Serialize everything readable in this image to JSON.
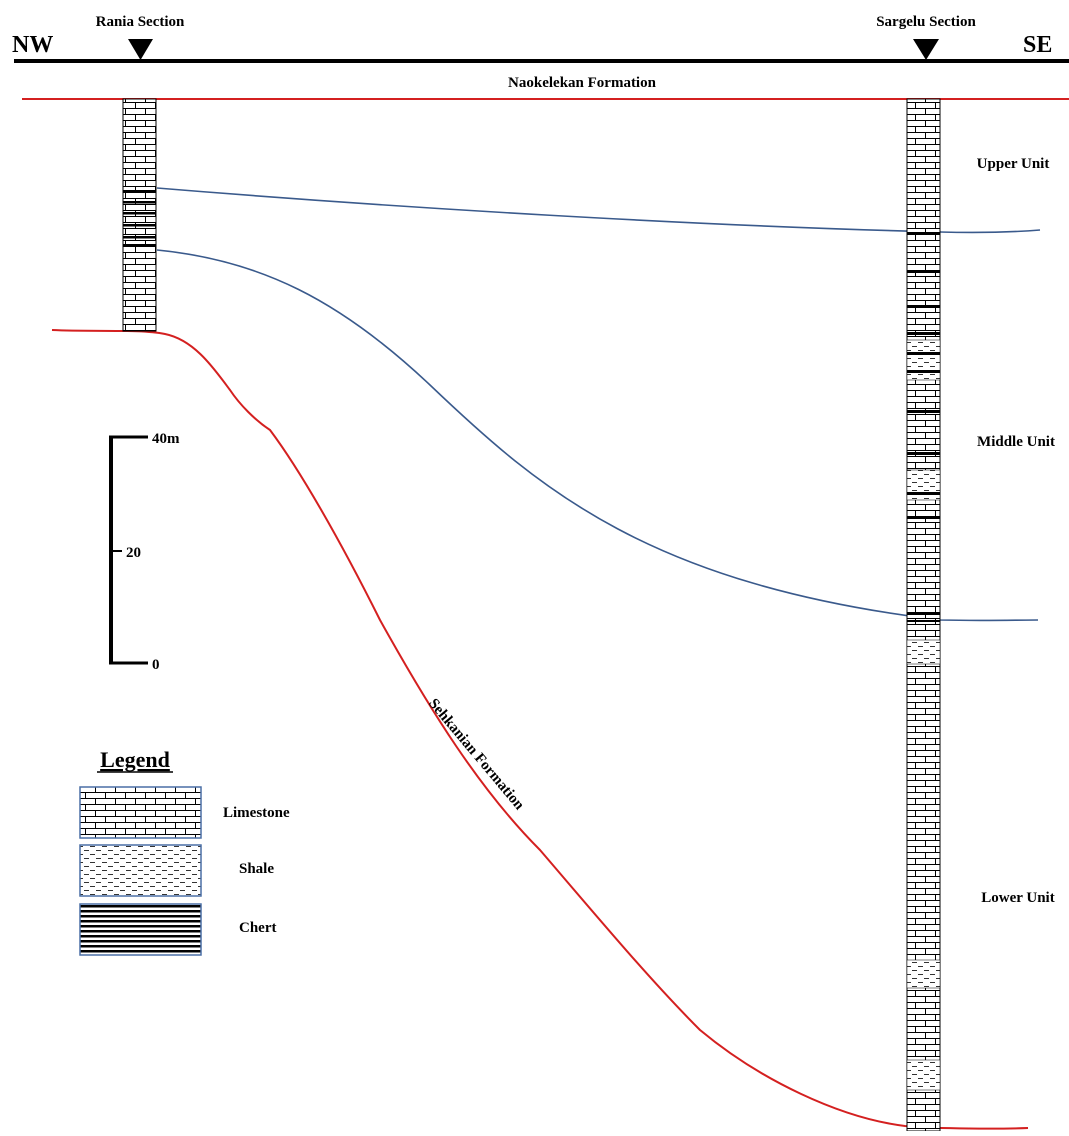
{
  "header": {
    "left_direction": "NW",
    "right_direction": "SE",
    "left_section": "Rania Section",
    "right_section": "Sargelu Section"
  },
  "formations": {
    "top": "Naokelekan Formation",
    "bottom": "Sehkanian Formation"
  },
  "units": {
    "upper": "Upper Unit",
    "middle": "Middle Unit",
    "lower": "Lower Unit"
  },
  "scale": {
    "top_label": "40m",
    "middle_label": "20",
    "bottom_label": "0"
  },
  "legend": {
    "title": "Legend",
    "items": [
      {
        "label": "Limestone",
        "pattern": "limestone"
      },
      {
        "label": "Shale",
        "pattern": "shale"
      },
      {
        "label": "Chert",
        "pattern": "chert"
      }
    ]
  },
  "colors": {
    "formation_boundary": "#d42020",
    "unit_boundary": "#3a5a8c",
    "ink": "#000000",
    "legend_border": "#4a6fa5"
  }
}
